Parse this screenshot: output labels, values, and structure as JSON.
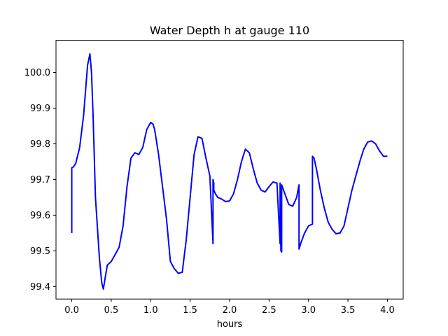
{
  "chart_data": {
    "type": "line",
    "title": "Water Depth h at gauge 110",
    "xlabel": "hours",
    "ylabel": "",
    "xlim": [
      -0.2,
      4.2
    ],
    "ylim": [
      99.365,
      100.09
    ],
    "xticks": [
      0.0,
      0.5,
      1.0,
      1.5,
      2.0,
      2.5,
      3.0,
      3.5,
      4.0
    ],
    "xtick_labels": [
      "0.0",
      "0.5",
      "1.0",
      "1.5",
      "2.0",
      "2.5",
      "3.0",
      "3.5",
      "4.0"
    ],
    "yticks": [
      99.4,
      99.5,
      99.6,
      99.7,
      99.8,
      99.9,
      100.0
    ],
    "ytick_labels": [
      "99.4",
      "99.5",
      "99.6",
      "99.7",
      "99.8",
      "99.9",
      "100.0"
    ],
    "grid": false,
    "legend": "none",
    "color": "#0000ff",
    "series": [
      {
        "x": [
          0.0,
          0.0,
          0.02,
          0.05,
          0.1,
          0.15,
          0.2,
          0.23,
          0.25,
          0.27,
          0.3,
          0.35,
          0.38,
          0.4,
          0.42,
          0.45,
          0.5,
          0.55,
          0.6,
          0.65,
          0.7,
          0.75,
          0.8,
          0.85,
          0.9,
          0.95,
          1.0,
          1.03,
          1.05,
          1.1,
          1.15,
          1.2,
          1.25,
          1.3,
          1.35,
          1.4,
          1.45,
          1.5,
          1.55,
          1.6,
          1.65,
          1.7,
          1.75,
          1.79,
          1.79,
          1.8,
          1.8,
          1.82,
          1.85,
          1.9,
          1.95,
          2.0,
          2.05,
          2.1,
          2.15,
          2.2,
          2.25,
          2.3,
          2.35,
          2.4,
          2.45,
          2.5,
          2.55,
          2.6,
          2.64,
          2.64,
          2.65,
          2.66,
          2.66,
          2.7,
          2.75,
          2.8,
          2.85,
          2.88,
          2.88,
          2.9,
          2.95,
          3.0,
          3.05,
          3.05,
          3.07,
          3.1,
          3.15,
          3.2,
          3.25,
          3.3,
          3.35,
          3.4,
          3.45,
          3.5,
          3.55,
          3.6,
          3.65,
          3.7,
          3.75,
          3.8,
          3.85,
          3.9,
          3.95,
          4.0
        ],
        "y": [
          99.55,
          99.733,
          99.735,
          99.745,
          99.79,
          99.88,
          100.02,
          100.052,
          100.0,
          99.88,
          99.65,
          99.48,
          99.41,
          99.393,
          99.42,
          99.46,
          99.47,
          99.49,
          99.51,
          99.57,
          99.68,
          99.76,
          99.775,
          99.77,
          99.79,
          99.84,
          99.86,
          99.855,
          99.84,
          99.77,
          99.68,
          99.59,
          99.47,
          99.45,
          99.437,
          99.44,
          99.53,
          99.65,
          99.77,
          99.82,
          99.815,
          99.76,
          99.71,
          99.52,
          99.7,
          99.69,
          99.67,
          99.66,
          99.65,
          99.645,
          99.638,
          99.64,
          99.66,
          99.7,
          99.75,
          99.785,
          99.775,
          99.73,
          99.69,
          99.67,
          99.665,
          99.68,
          99.693,
          99.69,
          99.52,
          99.69,
          99.5,
          99.497,
          99.685,
          99.66,
          99.63,
          99.625,
          99.65,
          99.685,
          99.505,
          99.52,
          99.55,
          99.57,
          99.575,
          99.765,
          99.76,
          99.73,
          99.67,
          99.62,
          99.58,
          99.56,
          99.548,
          99.55,
          99.57,
          99.62,
          99.67,
          99.71,
          99.75,
          99.785,
          99.805,
          99.808,
          99.8,
          99.78,
          99.765,
          99.765
        ]
      }
    ]
  }
}
